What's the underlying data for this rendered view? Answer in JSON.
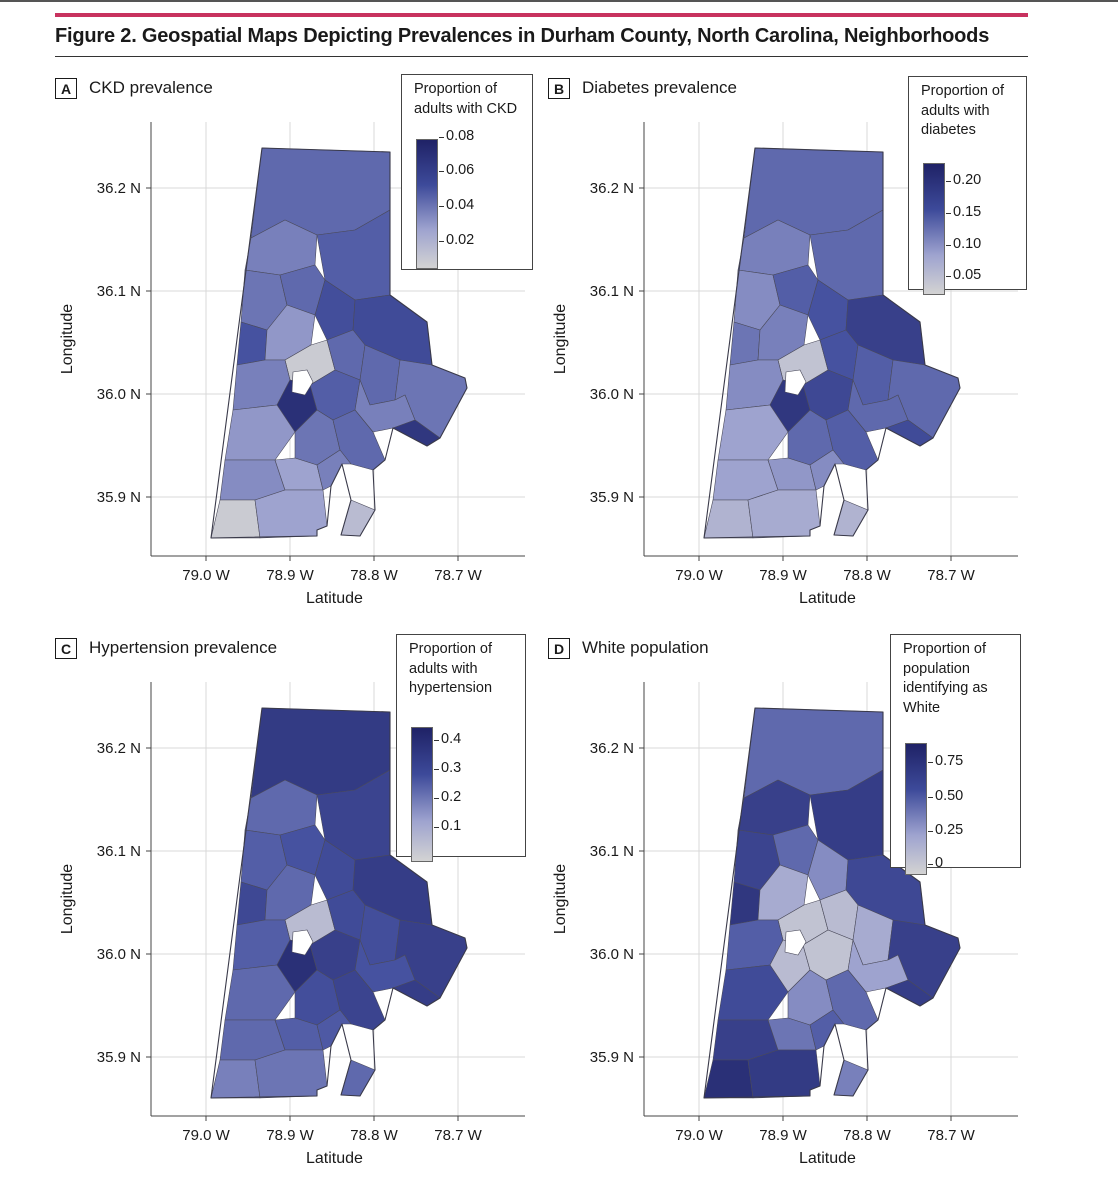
{
  "figure": {
    "title": "Figure 2. Geospatial Maps Depicting Prevalences in Durham County, North Carolina, Neighborhoods"
  },
  "axes": {
    "xlabel": "Latitude",
    "ylabel": "Longitude",
    "xticks": [
      "79.0 W",
      "78.9 W",
      "78.8 W",
      "78.7 W"
    ],
    "yticks": [
      "36.2 N",
      "36.1 N",
      "36.0 N",
      "35.9 N"
    ],
    "xticks_values": [
      -79.0,
      -78.9,
      -78.8,
      -78.7
    ],
    "yticks_values": [
      36.2,
      36.1,
      36.0,
      35.9
    ]
  },
  "colors": {
    "low": "#d3d3d3",
    "high": "#1f2266",
    "accent_rule": "#c8325f"
  },
  "panels": [
    {
      "letter": "A",
      "label": "CKD prevalence",
      "legend_title": [
        "Proportion of",
        "adults with CKD"
      ],
      "legend_ticks": [
        "0.08",
        "0.06",
        "0.04",
        "0.02"
      ],
      "legend_range": [
        0.01,
        0.08
      ]
    },
    {
      "letter": "B",
      "label": "Diabetes prevalence",
      "legend_title": [
        "Proportion of",
        "adults with",
        "diabetes"
      ],
      "legend_ticks": [
        "0.20",
        "0.15",
        "0.10",
        "0.05"
      ],
      "legend_range": [
        0.03,
        0.23
      ]
    },
    {
      "letter": "C",
      "label": "Hypertension prevalence",
      "legend_title": [
        "Proportion of",
        "adults with",
        "hypertension"
      ],
      "legend_ticks": [
        "0.4",
        "0.3",
        "0.2",
        "0.1"
      ],
      "legend_range": [
        0.06,
        0.46
      ]
    },
    {
      "letter": "D",
      "label": "White population",
      "legend_title": [
        "Proportion of",
        "population",
        "identifying as",
        "White"
      ],
      "legend_ticks": [
        "0.75",
        "0.50",
        "0.25",
        "0"
      ],
      "legend_range": [
        0.0,
        0.9
      ]
    }
  ]
}
